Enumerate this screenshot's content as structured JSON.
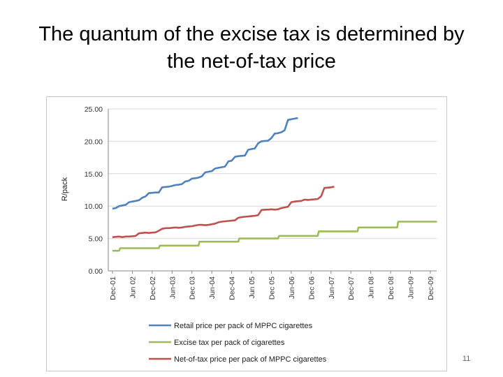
{
  "slide": {
    "title_line1": "The quantum of the excise tax is determined by",
    "title_line2": "the net-of-tax price",
    "page_number": "11"
  },
  "chart_data": {
    "type": "line",
    "ylabel": "R/pack",
    "ylim": [
      0,
      25
    ],
    "yticks": [
      "0.00",
      "5.00",
      "10.00",
      "15.00",
      "20.00",
      "25.00"
    ],
    "xticks": [
      "Dec-01",
      "Jun 02",
      "Dec-02",
      "Jun-03",
      "Dec 03",
      "Jun-04",
      "Dec-04",
      "Jun 05",
      "Dec 05",
      "Jun-06",
      "Dec 06",
      "Jun-07",
      "Dec-07",
      "Jun 08",
      "Dec 08",
      "Jun-09",
      "Dec-09"
    ],
    "grid": true,
    "legend_position": "bottom",
    "series": [
      {
        "name": "Retail price per pack of MPPC cigarettes",
        "color": "#4f81bd",
        "values": [
          [
            0,
            9.6
          ],
          [
            1,
            9.7
          ],
          [
            2,
            10.0
          ],
          [
            3,
            10.1
          ],
          [
            4,
            10.2
          ],
          [
            5,
            10.6
          ],
          [
            6,
            10.7
          ],
          [
            7,
            10.8
          ],
          [
            8,
            10.9
          ],
          [
            9,
            11.3
          ],
          [
            10,
            11.5
          ],
          [
            11,
            12.0
          ],
          [
            12,
            12.05
          ],
          [
            13,
            12.1
          ],
          [
            14,
            12.1
          ],
          [
            15,
            12.9
          ],
          [
            16,
            12.95
          ],
          [
            17,
            13.0
          ],
          [
            18,
            13.1
          ],
          [
            19,
            13.25
          ],
          [
            20,
            13.3
          ],
          [
            21,
            13.4
          ],
          [
            22,
            13.8
          ],
          [
            23,
            13.9
          ],
          [
            24,
            14.25
          ],
          [
            25,
            14.3
          ],
          [
            26,
            14.4
          ],
          [
            27,
            14.6
          ],
          [
            28,
            15.2
          ],
          [
            29,
            15.3
          ],
          [
            30,
            15.4
          ],
          [
            31,
            15.8
          ],
          [
            32,
            15.9
          ],
          [
            33,
            16.0
          ],
          [
            34,
            16.1
          ],
          [
            35,
            16.9
          ],
          [
            36,
            17.0
          ],
          [
            37,
            17.6
          ],
          [
            38,
            17.7
          ],
          [
            39,
            17.75
          ],
          [
            40,
            17.8
          ],
          [
            41,
            18.7
          ],
          [
            42,
            18.8
          ],
          [
            43,
            18.9
          ],
          [
            44,
            19.7
          ],
          [
            45,
            20.0
          ],
          [
            46,
            20.05
          ],
          [
            47,
            20.1
          ],
          [
            48,
            20.5
          ],
          [
            49,
            21.2
          ],
          [
            50,
            21.25
          ],
          [
            51,
            21.4
          ],
          [
            52,
            21.7
          ],
          [
            53,
            23.3
          ],
          [
            54,
            23.4
          ],
          [
            55,
            23.5
          ],
          [
            56,
            23.6
          ]
        ]
      },
      {
        "name": "Excise tax per pack of cigarettes",
        "color": "#9bbb59",
        "values": [
          [
            0,
            3.1
          ],
          [
            2,
            3.1
          ],
          [
            2.3,
            3.5
          ],
          [
            14,
            3.5
          ],
          [
            14.3,
            3.9
          ],
          [
            26,
            3.9
          ],
          [
            26.3,
            4.5
          ],
          [
            38,
            4.5
          ],
          [
            38.3,
            5.0
          ],
          [
            50,
            5.0
          ],
          [
            50.3,
            5.4
          ],
          [
            62,
            5.4
          ],
          [
            62.3,
            6.1
          ],
          [
            74,
            6.1
          ],
          [
            74.3,
            6.7
          ],
          [
            86,
            6.7
          ],
          [
            86.3,
            7.6
          ],
          [
            98,
            7.6
          ]
        ]
      },
      {
        "name": "Net-of-tax price per pack of MPPC cigarettes",
        "color": "#c0504d",
        "values": [
          [
            0,
            5.2
          ],
          [
            2,
            5.3
          ],
          [
            3,
            5.2
          ],
          [
            4,
            5.3
          ],
          [
            5,
            5.3
          ],
          [
            6,
            5.35
          ],
          [
            7,
            5.4
          ],
          [
            8,
            5.8
          ],
          [
            9,
            5.85
          ],
          [
            10,
            5.9
          ],
          [
            11,
            5.85
          ],
          [
            12,
            5.9
          ],
          [
            13,
            5.95
          ],
          [
            14,
            6.2
          ],
          [
            15,
            6.5
          ],
          [
            16,
            6.6
          ],
          [
            17,
            6.6
          ],
          [
            18,
            6.65
          ],
          [
            19,
            6.7
          ],
          [
            20,
            6.65
          ],
          [
            21,
            6.7
          ],
          [
            22,
            6.8
          ],
          [
            23,
            6.85
          ],
          [
            24,
            6.9
          ],
          [
            25,
            7.0
          ],
          [
            26,
            7.1
          ],
          [
            27,
            7.1
          ],
          [
            28,
            7.05
          ],
          [
            29,
            7.1
          ],
          [
            30,
            7.2
          ],
          [
            31,
            7.3
          ],
          [
            32,
            7.5
          ],
          [
            33,
            7.6
          ],
          [
            34,
            7.65
          ],
          [
            35,
            7.7
          ],
          [
            36,
            7.75
          ],
          [
            37,
            7.8
          ],
          [
            38,
            8.2
          ],
          [
            39,
            8.3
          ],
          [
            40,
            8.35
          ],
          [
            41,
            8.4
          ],
          [
            42,
            8.45
          ],
          [
            43,
            8.5
          ],
          [
            44,
            8.6
          ],
          [
            45,
            9.4
          ],
          [
            46,
            9.45
          ],
          [
            47,
            9.45
          ],
          [
            48,
            9.5
          ],
          [
            49,
            9.45
          ],
          [
            50,
            9.5
          ],
          [
            51,
            9.7
          ],
          [
            52,
            9.8
          ],
          [
            53,
            9.9
          ],
          [
            54,
            10.6
          ],
          [
            55,
            10.7
          ],
          [
            56,
            10.75
          ],
          [
            57,
            10.8
          ],
          [
            58,
            11.0
          ],
          [
            59,
            10.95
          ],
          [
            60,
            11.0
          ],
          [
            61,
            11.05
          ],
          [
            62,
            11.1
          ],
          [
            63,
            11.5
          ],
          [
            64,
            12.8
          ],
          [
            65,
            12.85
          ],
          [
            66,
            12.9
          ],
          [
            67,
            13.0
          ]
        ]
      }
    ]
  }
}
